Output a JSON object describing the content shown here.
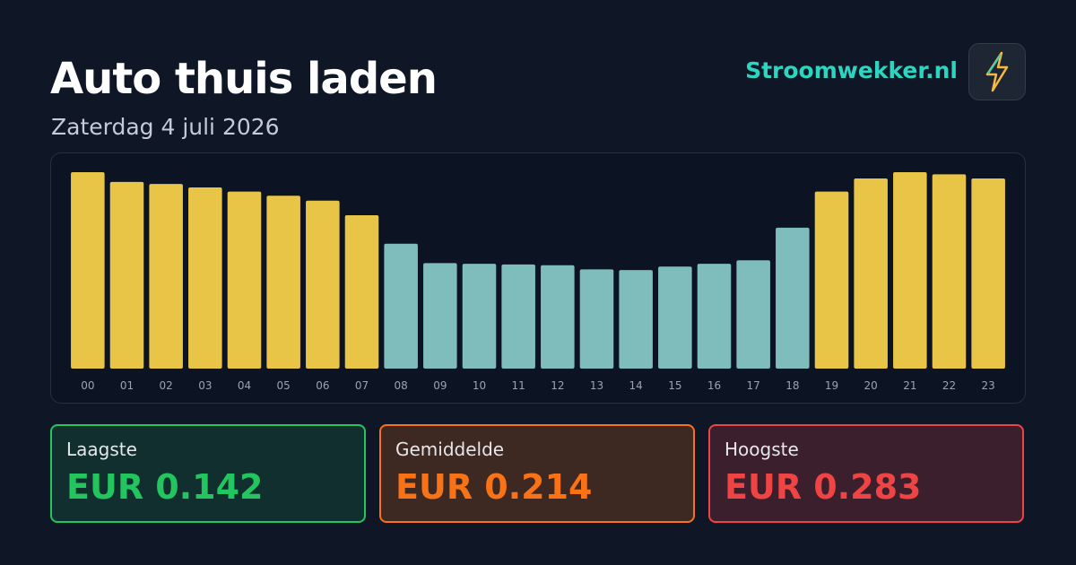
{
  "chart_data": {
    "type": "bar",
    "title": "Auto thuis laden",
    "subtitle": "Zaterdag 4 juli 2026",
    "brand": "Stroomwekker.nl",
    "categories": [
      "00",
      "01",
      "02",
      "03",
      "04",
      "05",
      "06",
      "07",
      "08",
      "09",
      "10",
      "11",
      "12",
      "13",
      "14",
      "15",
      "16",
      "17",
      "18",
      "19",
      "20",
      "21",
      "22",
      "23"
    ],
    "values": [
      0.283,
      0.269,
      0.266,
      0.261,
      0.255,
      0.249,
      0.242,
      0.221,
      0.18,
      0.152,
      0.151,
      0.15,
      0.149,
      0.143,
      0.142,
      0.147,
      0.151,
      0.156,
      0.203,
      0.255,
      0.274,
      0.283,
      0.28,
      0.274
    ],
    "colors": [
      "#e8c547",
      "#e8c547",
      "#e8c547",
      "#e8c547",
      "#e8c547",
      "#e8c547",
      "#e8c547",
      "#e8c547",
      "#7fbcbc",
      "#7fbcbc",
      "#7fbcbc",
      "#7fbcbc",
      "#7fbcbc",
      "#7fbcbc",
      "#7fbcbc",
      "#7fbcbc",
      "#7fbcbc",
      "#7fbcbc",
      "#7fbcbc",
      "#e8c547",
      "#e8c547",
      "#e8c547",
      "#e8c547",
      "#e8c547"
    ],
    "ylim": [
      0,
      0.283
    ],
    "stats": [
      {
        "label": "Laagste",
        "value": "EUR 0.142",
        "color": "#22c55e"
      },
      {
        "label": "Gemiddelde",
        "value": "EUR 0.214",
        "color": "#f97316"
      },
      {
        "label": "Hoogste",
        "value": "EUR 0.283",
        "color": "#ef4444"
      }
    ]
  }
}
